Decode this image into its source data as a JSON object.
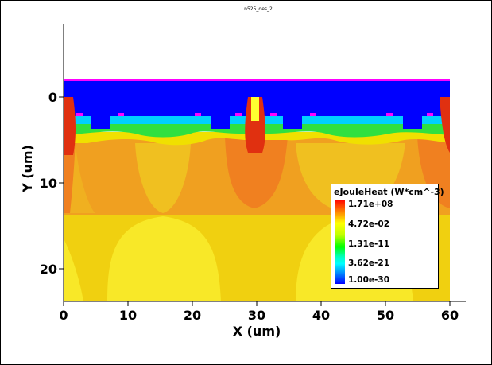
{
  "plot_title": "n525_des_2",
  "chart_data": {
    "type": "heatmap",
    "title": "n525_des_2",
    "xlabel": "X (um)",
    "ylabel": "Y (um)",
    "xlim": [
      0,
      60
    ],
    "ylim": [
      0,
      23
    ],
    "x_ticks": [
      0,
      10,
      20,
      30,
      40,
      50,
      60
    ],
    "y_ticks": [
      0,
      10,
      20
    ],
    "y_axis_inverted": true,
    "grid": false,
    "legend": {
      "title": "eJouleHeat (W*cm^-3)",
      "placement": "right",
      "scale": "log",
      "values": [
        "1.71e+08",
        "4.72e-02",
        "1.31e-11",
        "3.62e-21",
        "1.00e-30"
      ],
      "colors": [
        "#ff0000",
        "#ffff00",
        "#00ff00",
        "#00ffff",
        "#0000ff"
      ]
    }
  },
  "colors": {
    "background": "#ffffff",
    "oxide": "#0000ff",
    "contact": "#ff00ff",
    "hot": "#e83010",
    "warm": "#f09020",
    "mid": "#f0b020",
    "substrate": "#f0d010",
    "pale": "#f8e828"
  }
}
